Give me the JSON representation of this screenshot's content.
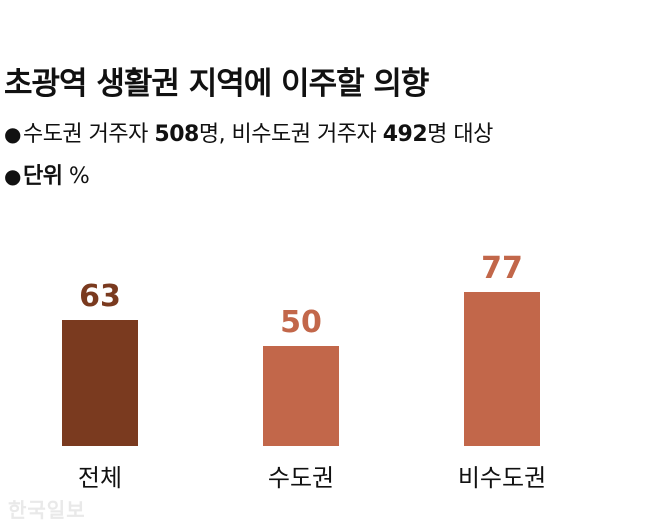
{
  "header": {
    "title": "초광역 생활권 지역에 이주할 의향",
    "note1_prefix": "수도권 거주자 ",
    "note1_n1": "508",
    "note1_mid": "명, 비수도권 거주자 ",
    "note1_n2": "492",
    "note1_suffix": "명 대상",
    "unit_label": "단위",
    "unit_value": " %"
  },
  "watermark": "한국일보",
  "colors": {
    "total": "#7a3a1f",
    "region": "#c2674a",
    "text": "#111111"
  },
  "chart_data": {
    "type": "bar",
    "categories": [
      "전체",
      "수도권",
      "비수도권"
    ],
    "values": [
      63,
      50,
      77
    ],
    "title": "초광역 생활권 지역에 이주할 의향",
    "xlabel": "",
    "ylabel": "",
    "unit": "%",
    "ylim": [
      0,
      100
    ],
    "grid": false,
    "bar_colors": [
      "#7a3a1f",
      "#c2674a",
      "#c2674a"
    ],
    "label_colors": [
      "#7a3a1f",
      "#c2674a",
      "#c2674a"
    ]
  }
}
